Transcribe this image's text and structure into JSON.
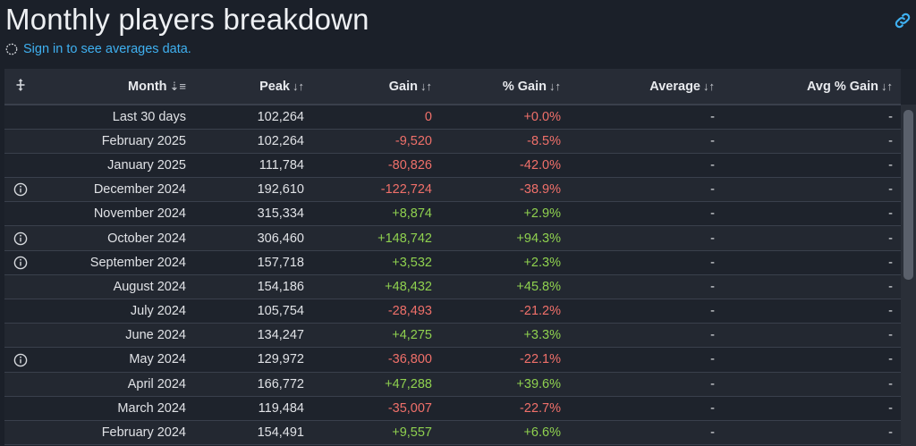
{
  "header": {
    "title": "Monthly players breakdown",
    "signin_text": "Sign in to see averages data."
  },
  "icons": {
    "link": "link-icon",
    "spinner": "loading-spinner-icon",
    "move": "move-arrows-icon",
    "info": "info-circle-icon",
    "sort": "sort-icon"
  },
  "colors": {
    "positive": "#8fd14f",
    "negative": "#f0706a",
    "link": "#3fb0f0"
  },
  "table": {
    "columns": [
      "Month",
      "Peak",
      "Gain",
      "% Gain",
      "Average",
      "Avg % Gain"
    ],
    "rows": [
      {
        "info": false,
        "month": "Last 30 days",
        "peak": "102,264",
        "gain": "0",
        "pct": "+0.0%",
        "avg": "-",
        "avgpct": "-",
        "sign": "neg"
      },
      {
        "info": false,
        "month": "February 2025",
        "peak": "102,264",
        "gain": "-9,520",
        "pct": "-8.5%",
        "avg": "-",
        "avgpct": "-",
        "sign": "neg"
      },
      {
        "info": false,
        "month": "January 2025",
        "peak": "111,784",
        "gain": "-80,826",
        "pct": "-42.0%",
        "avg": "-",
        "avgpct": "-",
        "sign": "neg"
      },
      {
        "info": true,
        "month": "December 2024",
        "peak": "192,610",
        "gain": "-122,724",
        "pct": "-38.9%",
        "avg": "-",
        "avgpct": "-",
        "sign": "neg"
      },
      {
        "info": false,
        "month": "November 2024",
        "peak": "315,334",
        "gain": "+8,874",
        "pct": "+2.9%",
        "avg": "-",
        "avgpct": "-",
        "sign": "pos"
      },
      {
        "info": true,
        "month": "October 2024",
        "peak": "306,460",
        "gain": "+148,742",
        "pct": "+94.3%",
        "avg": "-",
        "avgpct": "-",
        "sign": "pos"
      },
      {
        "info": true,
        "month": "September 2024",
        "peak": "157,718",
        "gain": "+3,532",
        "pct": "+2.3%",
        "avg": "-",
        "avgpct": "-",
        "sign": "pos"
      },
      {
        "info": false,
        "month": "August 2024",
        "peak": "154,186",
        "gain": "+48,432",
        "pct": "+45.8%",
        "avg": "-",
        "avgpct": "-",
        "sign": "pos"
      },
      {
        "info": false,
        "month": "July 2024",
        "peak": "105,754",
        "gain": "-28,493",
        "pct": "-21.2%",
        "avg": "-",
        "avgpct": "-",
        "sign": "neg"
      },
      {
        "info": false,
        "month": "June 2024",
        "peak": "134,247",
        "gain": "+4,275",
        "pct": "+3.3%",
        "avg": "-",
        "avgpct": "-",
        "sign": "pos"
      },
      {
        "info": true,
        "month": "May 2024",
        "peak": "129,972",
        "gain": "-36,800",
        "pct": "-22.1%",
        "avg": "-",
        "avgpct": "-",
        "sign": "neg"
      },
      {
        "info": false,
        "month": "April 2024",
        "peak": "166,772",
        "gain": "+47,288",
        "pct": "+39.6%",
        "avg": "-",
        "avgpct": "-",
        "sign": "pos"
      },
      {
        "info": false,
        "month": "March 2024",
        "peak": "119,484",
        "gain": "-35,007",
        "pct": "-22.7%",
        "avg": "-",
        "avgpct": "-",
        "sign": "neg"
      },
      {
        "info": false,
        "month": "February 2024",
        "peak": "154,491",
        "gain": "+9,557",
        "pct": "+6.6%",
        "avg": "-",
        "avgpct": "-",
        "sign": "pos"
      }
    ]
  }
}
